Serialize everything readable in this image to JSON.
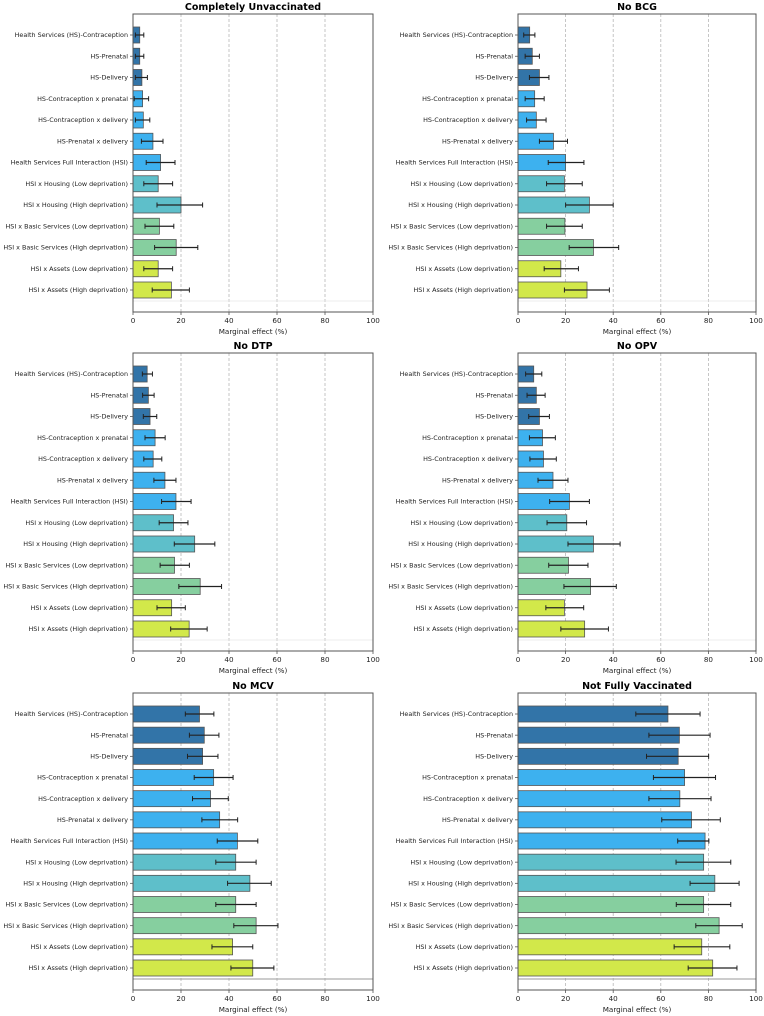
{
  "figure": {
    "x_axis_label": "Marginal effect (%)"
  },
  "chart_data": [
    {
      "type": "bar",
      "orientation": "horizontal",
      "title": "Completely Unvaccinated",
      "xlabel": "Marginal effect (%)",
      "ylabel": "",
      "xlim": [
        0,
        100
      ],
      "xticks": [
        0,
        20,
        40,
        60,
        80,
        100
      ],
      "grid": "vertical dashed at x ticks",
      "categories": [
        "Health Services (HS)-Contraception",
        "HS-Prenatal",
        "HS-Delivery",
        "HS-Contraception x prenatal",
        "HS-Contraception x delivery",
        "HS-Prenatal x delivery",
        "Health Services Full Interaction (HSI)",
        "HSI x Housing (Low deprivation)",
        "HSI x Housing (High deprivation)",
        "HSI x Basic Services (Low deprivation)",
        "HSI x Basic Services (High deprivation)",
        "HSI x Assets (Low deprivation)",
        "HSI x Assets (High deprivation)"
      ],
      "values": [
        2.8,
        2.8,
        3.7,
        4.0,
        4.3,
        8.3,
        11.5,
        10.5,
        20.0,
        11.0,
        18.0,
        10.5,
        16.0
      ],
      "ci_low": [
        1.0,
        1.0,
        1.0,
        0.5,
        1.0,
        3.5,
        5.5,
        4.5,
        10.0,
        5.0,
        9.0,
        4.5,
        8.0
      ],
      "ci_high": [
        4.5,
        4.5,
        6.0,
        6.5,
        7.0,
        12.5,
        17.5,
        16.5,
        29.0,
        17.0,
        27.0,
        16.5,
        23.5
      ]
    },
    {
      "type": "bar",
      "orientation": "horizontal",
      "title": "No BCG",
      "xlabel": "Marginal effect (%)",
      "ylabel": "",
      "xlim": [
        0,
        100
      ],
      "xticks": [
        0,
        20,
        40,
        60,
        80,
        100
      ],
      "grid": "vertical dashed at x ticks",
      "categories": [
        "Health Services (HS)-Contraception",
        "HS-Prenatal",
        "HS-Delivery",
        "HS-Contraception x prenatal",
        "HS-Contraception x delivery",
        "HS-Prenatal x delivery",
        "Health Services Full Interaction (HSI)",
        "HSI x Housing (Low deprivation)",
        "HSI x Housing (High deprivation)",
        "HSI x Basic Services (Low deprivation)",
        "HSI x Basic Services (High deprivation)",
        "HSI x Assets (Low deprivation)",
        "HSI x Assets (High deprivation)"
      ],
      "values": [
        4.9,
        6.0,
        9.0,
        7.0,
        7.7,
        14.9,
        20.0,
        19.5,
        30.0,
        19.7,
        31.7,
        18.0,
        29.0
      ],
      "ci_low": [
        2.4,
        3.0,
        4.8,
        3.0,
        3.6,
        9.0,
        12.7,
        12.0,
        20.0,
        12.0,
        21.5,
        11.0,
        19.5
      ],
      "ci_high": [
        7.1,
        9.0,
        13.0,
        11.0,
        11.8,
        20.8,
        27.7,
        27.0,
        40.0,
        27.0,
        42.3,
        25.4,
        38.4
      ]
    },
    {
      "type": "bar",
      "orientation": "horizontal",
      "title": "No DTP",
      "xlabel": "Marginal effect (%)",
      "ylabel": "",
      "xlim": [
        0,
        100
      ],
      "xticks": [
        0,
        20,
        40,
        60,
        80,
        100
      ],
      "grid": "vertical dashed at x ticks",
      "categories": [
        "Health Services (HS)-Contraception",
        "HS-Prenatal",
        "HS-Delivery",
        "HS-Contraception x prenatal",
        "HS-Contraception x delivery",
        "HS-Prenatal x delivery",
        "Health Services Full Interaction (HSI)",
        "HSI x Housing (Low deprivation)",
        "HSI x Housing (High deprivation)",
        "HSI x Basic Services (Low deprivation)",
        "HSI x Basic Services (High deprivation)",
        "HSI x Assets (Low deprivation)",
        "HSI x Assets (High deprivation)"
      ],
      "values": [
        5.9,
        6.4,
        7.1,
        9.2,
        8.4,
        13.3,
        17.9,
        16.9,
        25.7,
        17.3,
        28.0,
        16.1,
        23.4
      ],
      "ci_low": [
        3.9,
        4.0,
        4.3,
        5.0,
        4.5,
        8.7,
        11.9,
        10.9,
        17.2,
        11.3,
        19.1,
        10.0,
        15.7
      ],
      "ci_high": [
        8.1,
        8.8,
        9.9,
        13.4,
        12.0,
        17.9,
        24.2,
        22.9,
        34.1,
        23.5,
        36.9,
        21.8,
        30.9
      ]
    },
    {
      "type": "bar",
      "orientation": "horizontal",
      "title": "No OPV",
      "xlabel": "Marginal effect (%)",
      "ylabel": "",
      "xlim": [
        0,
        100
      ],
      "xticks": [
        0,
        20,
        40,
        60,
        80,
        100
      ],
      "grid": "vertical dashed at x ticks",
      "categories": [
        "Health Services (HS)-Contraception",
        "HS-Prenatal",
        "HS-Delivery",
        "HS-Contraception x prenatal",
        "HS-Contraception x delivery",
        "HS-Prenatal x delivery",
        "Health Services Full Interaction (HSI)",
        "HSI x Housing (Low deprivation)",
        "HSI x Housing (High deprivation)",
        "HSI x Basic Services (Low deprivation)",
        "HSI x Basic Services (High deprivation)",
        "HSI x Assets (Low deprivation)",
        "HSI x Assets (High deprivation)"
      ],
      "values": [
        6.6,
        7.7,
        9.0,
        10.3,
        10.7,
        14.7,
        21.6,
        20.5,
        31.7,
        21.2,
        30.5,
        19.5,
        28.0
      ],
      "ci_low": [
        3.2,
        3.8,
        4.5,
        4.8,
        5.0,
        8.4,
        13.3,
        12.2,
        21.0,
        12.9,
        19.3,
        11.7,
        18.0
      ],
      "ci_high": [
        10.0,
        11.4,
        13.2,
        15.7,
        16.1,
        21.0,
        30.0,
        28.8,
        42.9,
        29.4,
        41.3,
        27.6,
        38.0
      ]
    },
    {
      "type": "bar",
      "orientation": "horizontal",
      "title": "No MCV",
      "xlabel": "Marginal effect (%)",
      "ylabel": "",
      "xlim": [
        0,
        100
      ],
      "xticks": [
        0,
        20,
        40,
        60,
        80,
        100
      ],
      "grid": "vertical dashed at x ticks",
      "categories": [
        "Health Services (HS)-Contraception",
        "HS-Prenatal",
        "HS-Delivery",
        "HS-Contraception x prenatal",
        "HS-Contraception x delivery",
        "HS-Prenatal x delivery",
        "Health Services Full Interaction (HSI)",
        "HSI x Housing (Low deprivation)",
        "HSI x Housing (High deprivation)",
        "HSI x Basic Services (Low deprivation)",
        "HSI x Basic Services (High deprivation)",
        "HSI x Assets (Low deprivation)",
        "HSI x Assets (High deprivation)"
      ],
      "values": [
        27.7,
        29.7,
        29.0,
        33.6,
        32.3,
        36.1,
        43.5,
        42.8,
        48.7,
        42.8,
        51.3,
        41.5,
        49.9
      ],
      "ci_low": [
        21.8,
        23.5,
        22.7,
        25.5,
        24.8,
        28.7,
        35.1,
        34.5,
        39.4,
        34.5,
        42.0,
        32.9,
        40.8
      ],
      "ci_high": [
        33.7,
        35.8,
        35.4,
        41.7,
        39.7,
        43.6,
        52.0,
        51.3,
        57.6,
        51.3,
        60.4,
        49.9,
        58.7
      ]
    },
    {
      "type": "bar",
      "orientation": "horizontal",
      "title": "Not Fully Vaccinated",
      "xlabel": "Marginal effect (%)",
      "ylabel": "",
      "xlim": [
        0,
        100
      ],
      "xticks": [
        0,
        20,
        40,
        60,
        80,
        100
      ],
      "grid": "vertical dashed at x ticks",
      "categories": [
        "Health Services (HS)-Contraception",
        "HS-Prenatal",
        "HS-Delivery",
        "HS-Contraception x prenatal",
        "HS-Contraception x delivery",
        "HS-Prenatal x delivery",
        "Health Services Full Interaction (HSI)",
        "HSI x Housing (Low deprivation)",
        "HSI x Housing (High deprivation)",
        "HSI x Basic Services (Low deprivation)",
        "HSI x Basic Services (High deprivation)",
        "HSI x Assets (Low deprivation)",
        "HSI x Assets (High deprivation)"
      ],
      "values": [
        63.0,
        67.8,
        67.3,
        70.0,
        68.0,
        72.9,
        78.6,
        78.0,
        82.7,
        78.0,
        84.5,
        77.2,
        81.8
      ],
      "ci_low": [
        49.5,
        55.0,
        54.0,
        56.9,
        55.0,
        60.4,
        67.1,
        66.4,
        72.3,
        66.5,
        74.7,
        65.6,
        71.5
      ],
      "ci_high": [
        76.5,
        80.7,
        80.1,
        83.0,
        81.1,
        85.0,
        80.2,
        89.4,
        92.9,
        89.4,
        94.2,
        89.0,
        92.0
      ]
    }
  ],
  "category_colors": [
    "#3274a8",
    "#3274a8",
    "#3274a8",
    "#3db1ef",
    "#3db1ef",
    "#3db1ef",
    "#3db1ef",
    "#5ebfca",
    "#5ebfca",
    "#86cf9f",
    "#86cf9f",
    "#d2e84a",
    "#d2e84a"
  ],
  "styles": {
    "bar_edge": "#555555",
    "errorbar": "#222222",
    "grid": "#b8b8b8",
    "axes": "#555555"
  }
}
